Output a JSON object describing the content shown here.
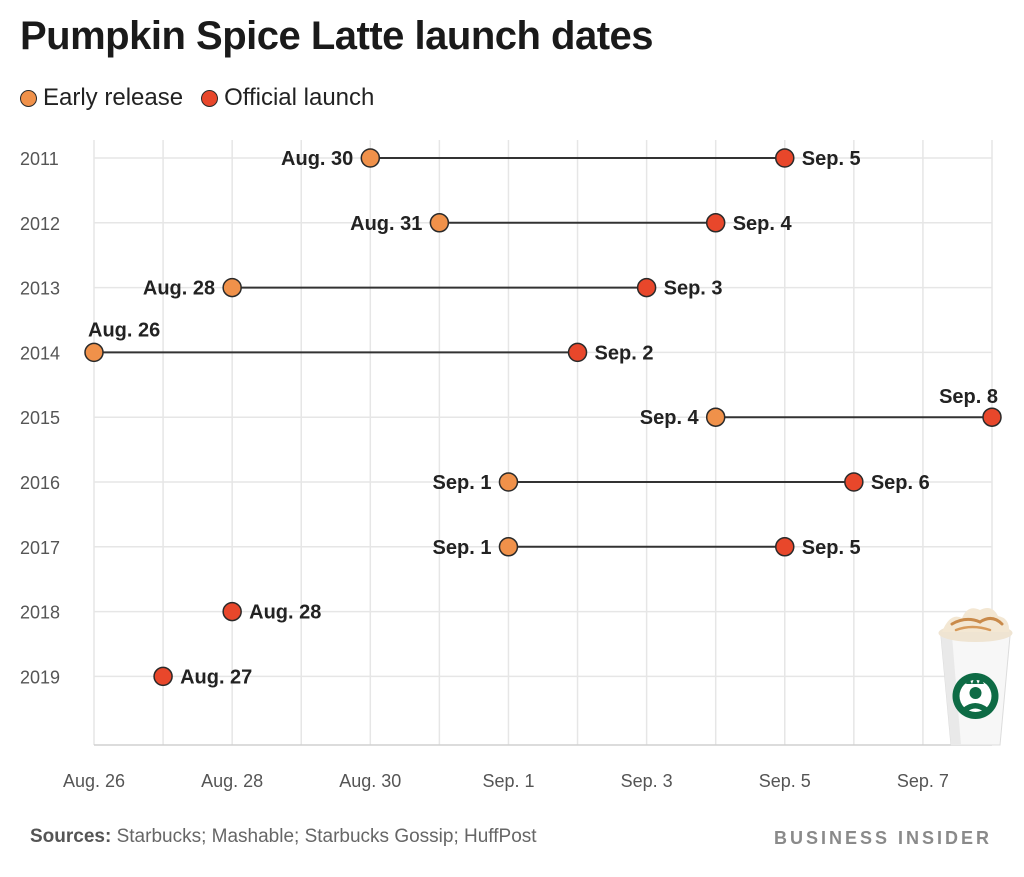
{
  "title": "Pumpkin Spice Latte launch dates",
  "legend": [
    {
      "label": "Early release",
      "color": "#f0914a"
    },
    {
      "label": "Official launch",
      "color": "#e8472b"
    }
  ],
  "colors": {
    "early": "#f0914a",
    "official": "#e8472b",
    "line": "#333333",
    "grid": "#e6e6e6"
  },
  "footer": {
    "sources_label": "Sources:",
    "sources_text": "Starbucks; Mashable; Starbucks Gossip; HuffPost"
  },
  "brand": "BUSINESS INSIDER",
  "icons": {
    "cup": "starbucks-cup-icon"
  },
  "chart_data": {
    "type": "dumbbell",
    "xlim": [
      "2000-08-26",
      "2000-09-08"
    ],
    "x_ticks": [
      {
        "date": "2000-08-26",
        "label": "Aug. 26"
      },
      {
        "date": "2000-08-28",
        "label": "Aug. 28"
      },
      {
        "date": "2000-08-30",
        "label": "Aug. 30"
      },
      {
        "date": "2000-09-01",
        "label": "Sep. 1"
      },
      {
        "date": "2000-09-03",
        "label": "Sep. 3"
      },
      {
        "date": "2000-09-05",
        "label": "Sep. 5"
      },
      {
        "date": "2000-09-07",
        "label": "Sep. 7"
      }
    ],
    "grid": true,
    "legend_position": "top-left",
    "rows": [
      {
        "year": "2011",
        "early": {
          "date": "2000-08-30",
          "label": "Aug. 30"
        },
        "official": {
          "date": "2000-09-05",
          "label": "Sep. 5"
        }
      },
      {
        "year": "2012",
        "early": {
          "date": "2000-08-31",
          "label": "Aug. 31"
        },
        "official": {
          "date": "2000-09-04",
          "label": "Sep. 4"
        }
      },
      {
        "year": "2013",
        "early": {
          "date": "2000-08-28",
          "label": "Aug. 28"
        },
        "official": {
          "date": "2000-09-03",
          "label": "Sep. 3"
        }
      },
      {
        "year": "2014",
        "early": {
          "date": "2000-08-26",
          "label": "Aug. 26"
        },
        "official": {
          "date": "2000-09-02",
          "label": "Sep. 2"
        }
      },
      {
        "year": "2015",
        "early": {
          "date": "2000-09-04",
          "label": "Sep. 4"
        },
        "official": {
          "date": "2000-09-08",
          "label": "Sep. 8"
        }
      },
      {
        "year": "2016",
        "early": {
          "date": "2000-09-01",
          "label": "Sep. 1"
        },
        "official": {
          "date": "2000-09-06",
          "label": "Sep. 6"
        }
      },
      {
        "year": "2017",
        "early": {
          "date": "2000-09-01",
          "label": "Sep. 1"
        },
        "official": {
          "date": "2000-09-05",
          "label": "Sep. 5"
        }
      },
      {
        "year": "2018",
        "early": null,
        "official": {
          "date": "2000-08-28",
          "label": "Aug. 28"
        }
      },
      {
        "year": "2019",
        "early": null,
        "official": {
          "date": "2000-08-27",
          "label": "Aug. 27"
        }
      }
    ]
  }
}
